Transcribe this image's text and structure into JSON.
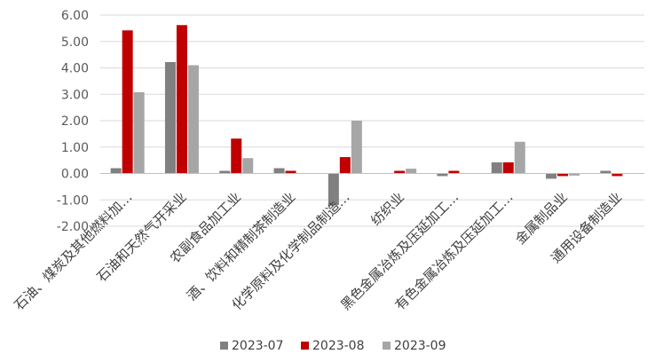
{
  "chart_data": {
    "type": "bar",
    "title": "",
    "xlabel": "",
    "ylabel": "",
    "ylim": [
      -2.0,
      6.0
    ],
    "yticks": [
      6.0,
      5.0,
      4.0,
      3.0,
      2.0,
      1.0,
      0.0,
      -1.0,
      -2.0
    ],
    "ytick_labels": [
      "6.00",
      "5.00",
      "4.00",
      "3.00",
      "2.00",
      "1.00",
      "0.00",
      "-1.00",
      "-2.00"
    ],
    "grid": true,
    "legend_position": "bottom",
    "categories": [
      "石油、煤炭及其他燃料加…",
      "石油和天然气开采业",
      "农副食品加工业",
      "酒、饮料和精制茶制造业",
      "化学原料及化学制品制造…",
      "纺织业",
      "黑色金属冶炼及压延加工…",
      "有色金属冶炼及压延加工…",
      "金属制品业",
      "通用设备制造业"
    ],
    "series": [
      {
        "name": "2023-07",
        "color": "#808080",
        "values": [
          0.2,
          4.22,
          0.1,
          0.2,
          -1.2,
          0.0,
          -0.1,
          0.42,
          -0.2,
          0.1
        ]
      },
      {
        "name": "2023-08",
        "color": "#c00000",
        "values": [
          5.42,
          5.62,
          1.32,
          0.1,
          0.62,
          0.1,
          0.1,
          0.42,
          -0.1,
          -0.1
        ]
      },
      {
        "name": "2023-09",
        "color": "#a6a6a6",
        "values": [
          3.08,
          4.1,
          0.58,
          0.0,
          2.0,
          0.18,
          0.0,
          1.2,
          -0.08,
          0.0
        ]
      }
    ]
  }
}
